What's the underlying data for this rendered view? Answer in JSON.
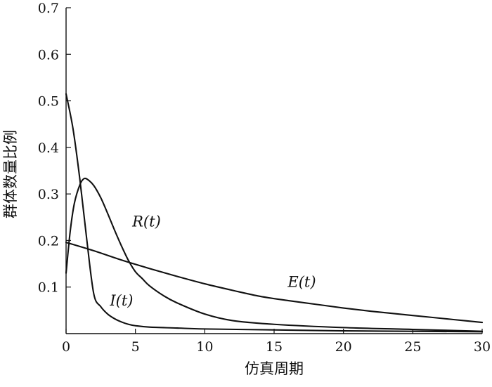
{
  "chart_data": {
    "type": "line",
    "title": "",
    "xlabel": "仿真周期",
    "ylabel": "群体数量比例",
    "xlim": [
      0,
      30
    ],
    "ylim": [
      0,
      0.7
    ],
    "x_ticks": [
      0,
      5,
      10,
      15,
      20,
      25,
      30
    ],
    "x_tick_labels": [
      "0",
      "5",
      "10",
      "15",
      "20",
      "25",
      "30"
    ],
    "y_ticks": [
      0.1,
      0.2,
      0.3,
      0.4,
      0.5,
      0.6,
      0.7
    ],
    "y_tick_labels": [
      "0.1",
      "0.2",
      "0.3",
      "0.4",
      "0.5",
      "0.6",
      "0.7"
    ],
    "grid": false,
    "series": [
      {
        "name": "E(t)",
        "label_at": [
          17,
          0.1
        ],
        "x": [
          0,
          2,
          4,
          6,
          8,
          10,
          12,
          14,
          16,
          18,
          20,
          22,
          24,
          26,
          28,
          30
        ],
        "y": [
          0.196,
          0.178,
          0.158,
          0.14,
          0.123,
          0.107,
          0.093,
          0.08,
          0.071,
          0.063,
          0.055,
          0.048,
          0.042,
          0.036,
          0.03,
          0.024
        ]
      },
      {
        "name": "R(t)",
        "label_at": [
          5.8,
          0.23
        ],
        "x": [
          0,
          0.3,
          0.6,
          1,
          1.3,
          1.6,
          2,
          2.5,
          3,
          3.5,
          4,
          4.5,
          5,
          5.5,
          6,
          7,
          8,
          10,
          12,
          15,
          20,
          25,
          30
        ],
        "y": [
          0.13,
          0.22,
          0.28,
          0.32,
          0.333,
          0.33,
          0.318,
          0.292,
          0.258,
          0.222,
          0.188,
          0.157,
          0.133,
          0.118,
          0.103,
          0.082,
          0.066,
          0.042,
          0.028,
          0.02,
          0.013,
          0.009,
          0.005
        ]
      },
      {
        "name": "I(t)",
        "label_at": [
          4.0,
          0.06
        ],
        "x": [
          0,
          0.5,
          1,
          1.5,
          2,
          2.5,
          3,
          3.5,
          4,
          4.5,
          5,
          6,
          8,
          10,
          15,
          20,
          25,
          30
        ],
        "y": [
          0.515,
          0.44,
          0.33,
          0.2,
          0.085,
          0.058,
          0.042,
          0.032,
          0.025,
          0.02,
          0.017,
          0.014,
          0.012,
          0.01,
          0.008,
          0.006,
          0.005,
          0.004
        ]
      }
    ]
  }
}
